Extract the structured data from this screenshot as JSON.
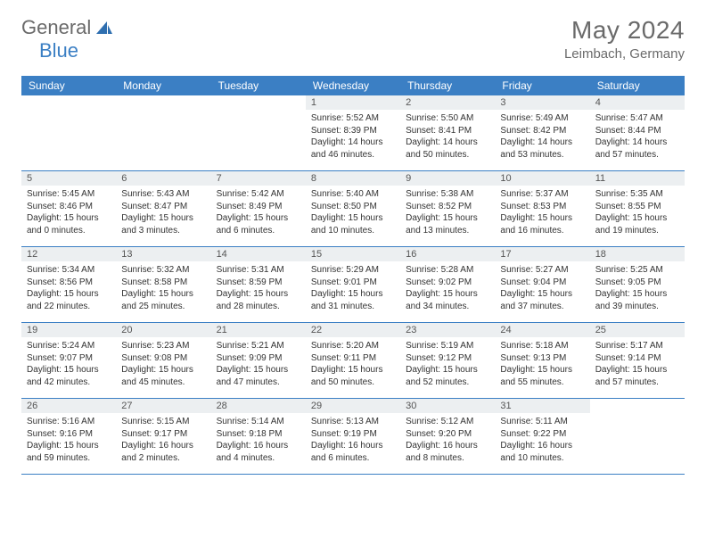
{
  "brand": {
    "text1": "General",
    "text2": "Blue"
  },
  "title": "May 2024",
  "location": "Leimbach, Germany",
  "header_bg": "#3b7fc4",
  "daynum_bg": "#eceff1",
  "weekdays": [
    "Sunday",
    "Monday",
    "Tuesday",
    "Wednesday",
    "Thursday",
    "Friday",
    "Saturday"
  ],
  "weeks": [
    [
      null,
      null,
      null,
      {
        "n": "1",
        "sr": "5:52 AM",
        "ss": "8:39 PM",
        "dl": "14 hours and 46 minutes."
      },
      {
        "n": "2",
        "sr": "5:50 AM",
        "ss": "8:41 PM",
        "dl": "14 hours and 50 minutes."
      },
      {
        "n": "3",
        "sr": "5:49 AM",
        "ss": "8:42 PM",
        "dl": "14 hours and 53 minutes."
      },
      {
        "n": "4",
        "sr": "5:47 AM",
        "ss": "8:44 PM",
        "dl": "14 hours and 57 minutes."
      }
    ],
    [
      {
        "n": "5",
        "sr": "5:45 AM",
        "ss": "8:46 PM",
        "dl": "15 hours and 0 minutes."
      },
      {
        "n": "6",
        "sr": "5:43 AM",
        "ss": "8:47 PM",
        "dl": "15 hours and 3 minutes."
      },
      {
        "n": "7",
        "sr": "5:42 AM",
        "ss": "8:49 PM",
        "dl": "15 hours and 6 minutes."
      },
      {
        "n": "8",
        "sr": "5:40 AM",
        "ss": "8:50 PM",
        "dl": "15 hours and 10 minutes."
      },
      {
        "n": "9",
        "sr": "5:38 AM",
        "ss": "8:52 PM",
        "dl": "15 hours and 13 minutes."
      },
      {
        "n": "10",
        "sr": "5:37 AM",
        "ss": "8:53 PM",
        "dl": "15 hours and 16 minutes."
      },
      {
        "n": "11",
        "sr": "5:35 AM",
        "ss": "8:55 PM",
        "dl": "15 hours and 19 minutes."
      }
    ],
    [
      {
        "n": "12",
        "sr": "5:34 AM",
        "ss": "8:56 PM",
        "dl": "15 hours and 22 minutes."
      },
      {
        "n": "13",
        "sr": "5:32 AM",
        "ss": "8:58 PM",
        "dl": "15 hours and 25 minutes."
      },
      {
        "n": "14",
        "sr": "5:31 AM",
        "ss": "8:59 PM",
        "dl": "15 hours and 28 minutes."
      },
      {
        "n": "15",
        "sr": "5:29 AM",
        "ss": "9:01 PM",
        "dl": "15 hours and 31 minutes."
      },
      {
        "n": "16",
        "sr": "5:28 AM",
        "ss": "9:02 PM",
        "dl": "15 hours and 34 minutes."
      },
      {
        "n": "17",
        "sr": "5:27 AM",
        "ss": "9:04 PM",
        "dl": "15 hours and 37 minutes."
      },
      {
        "n": "18",
        "sr": "5:25 AM",
        "ss": "9:05 PM",
        "dl": "15 hours and 39 minutes."
      }
    ],
    [
      {
        "n": "19",
        "sr": "5:24 AM",
        "ss": "9:07 PM",
        "dl": "15 hours and 42 minutes."
      },
      {
        "n": "20",
        "sr": "5:23 AM",
        "ss": "9:08 PM",
        "dl": "15 hours and 45 minutes."
      },
      {
        "n": "21",
        "sr": "5:21 AM",
        "ss": "9:09 PM",
        "dl": "15 hours and 47 minutes."
      },
      {
        "n": "22",
        "sr": "5:20 AM",
        "ss": "9:11 PM",
        "dl": "15 hours and 50 minutes."
      },
      {
        "n": "23",
        "sr": "5:19 AM",
        "ss": "9:12 PM",
        "dl": "15 hours and 52 minutes."
      },
      {
        "n": "24",
        "sr": "5:18 AM",
        "ss": "9:13 PM",
        "dl": "15 hours and 55 minutes."
      },
      {
        "n": "25",
        "sr": "5:17 AM",
        "ss": "9:14 PM",
        "dl": "15 hours and 57 minutes."
      }
    ],
    [
      {
        "n": "26",
        "sr": "5:16 AM",
        "ss": "9:16 PM",
        "dl": "15 hours and 59 minutes."
      },
      {
        "n": "27",
        "sr": "5:15 AM",
        "ss": "9:17 PM",
        "dl": "16 hours and 2 minutes."
      },
      {
        "n": "28",
        "sr": "5:14 AM",
        "ss": "9:18 PM",
        "dl": "16 hours and 4 minutes."
      },
      {
        "n": "29",
        "sr": "5:13 AM",
        "ss": "9:19 PM",
        "dl": "16 hours and 6 minutes."
      },
      {
        "n": "30",
        "sr": "5:12 AM",
        "ss": "9:20 PM",
        "dl": "16 hours and 8 minutes."
      },
      {
        "n": "31",
        "sr": "5:11 AM",
        "ss": "9:22 PM",
        "dl": "16 hours and 10 minutes."
      },
      null
    ]
  ],
  "labels": {
    "sunrise": "Sunrise:",
    "sunset": "Sunset:",
    "daylight": "Daylight:"
  }
}
